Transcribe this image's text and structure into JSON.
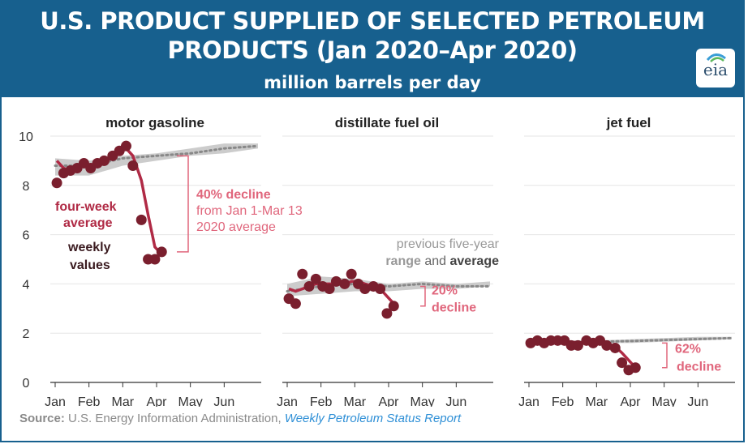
{
  "header": {
    "title_line1": "U.S. PRODUCT SUPPLIED OF SELECTED PETROLEUM",
    "title_line2": "PRODUCTS (Jan 2020–Apr 2020)",
    "subtitle": "million barrels per day",
    "logo_text": "eia"
  },
  "source": {
    "label": "Source:",
    "agency": " U.S. Energy Information Administration, ",
    "report": "Weekly Petroleum Status Report"
  },
  "colors": {
    "header_bg": "#17608e",
    "weekly": "#7a1f2e",
    "average_4wk": "#b02a45",
    "decline_text": "#e0667c",
    "range_band": "#cccccc",
    "five_year_avg": "#888888"
  },
  "chart_data": {
    "type": "line",
    "ylim": [
      0,
      10
    ],
    "yticks": [
      "0",
      "2",
      "4",
      "6",
      "8",
      "10"
    ],
    "xlim": [
      0,
      6
    ],
    "xticks": [
      "Jan",
      "Feb",
      "Mar",
      "Apr",
      "May",
      "Jun"
    ],
    "grid": true,
    "panels": [
      {
        "title": "motor gasoline",
        "weekly": [
          [
            0.05,
            8.1
          ],
          [
            0.25,
            8.5
          ],
          [
            0.45,
            8.6
          ],
          [
            0.65,
            8.7
          ],
          [
            0.85,
            8.9
          ],
          [
            1.05,
            8.7
          ],
          [
            1.25,
            8.9
          ],
          [
            1.45,
            9.0
          ],
          [
            1.7,
            9.2
          ],
          [
            1.9,
            9.4
          ],
          [
            2.1,
            9.6
          ],
          [
            2.3,
            8.8
          ],
          [
            2.55,
            6.6
          ],
          [
            2.75,
            5.0
          ],
          [
            2.95,
            5.0
          ],
          [
            3.15,
            5.3
          ]
        ],
        "avg_4wk": [
          [
            0.05,
            9.0
          ],
          [
            0.25,
            8.7
          ],
          [
            0.45,
            8.6
          ],
          [
            0.65,
            8.7
          ],
          [
            0.85,
            8.8
          ],
          [
            1.05,
            8.8
          ],
          [
            1.25,
            8.9
          ],
          [
            1.45,
            9.0
          ],
          [
            1.7,
            9.1
          ],
          [
            1.9,
            9.3
          ],
          [
            2.1,
            9.5
          ],
          [
            2.3,
            9.2
          ],
          [
            2.55,
            8.2
          ],
          [
            2.75,
            6.8
          ],
          [
            2.95,
            5.5
          ],
          [
            3.15,
            5.2
          ]
        ],
        "range_upper": [
          [
            0,
            9.1
          ],
          [
            1,
            9.0
          ],
          [
            2,
            9.2
          ],
          [
            3,
            9.3
          ],
          [
            4,
            9.5
          ],
          [
            5,
            9.7
          ],
          [
            6,
            9.7
          ]
        ],
        "range_lower": [
          [
            0,
            8.4
          ],
          [
            1,
            8.4
          ],
          [
            2,
            8.8
          ],
          [
            3,
            9.0
          ],
          [
            4,
            9.2
          ],
          [
            5,
            9.3
          ],
          [
            6,
            9.5
          ]
        ],
        "five_year_avg": [
          [
            0,
            8.8
          ],
          [
            1,
            8.8
          ],
          [
            2,
            9.1
          ],
          [
            3,
            9.2
          ],
          [
            4,
            9.3
          ],
          [
            5,
            9.5
          ],
          [
            6,
            9.6
          ]
        ],
        "annotation": {
          "main": "40% decline",
          "sub1": "from Jan 1-Mar 13",
          "sub2": "2020 average",
          "from": 9.2,
          "to": 5.3
        }
      },
      {
        "title": "distillate fuel oil",
        "weekly": [
          [
            0.05,
            3.4
          ],
          [
            0.25,
            3.2
          ],
          [
            0.45,
            4.4
          ],
          [
            0.65,
            3.9
          ],
          [
            0.85,
            4.2
          ],
          [
            1.05,
            3.9
          ],
          [
            1.25,
            3.8
          ],
          [
            1.45,
            4.1
          ],
          [
            1.7,
            4.0
          ],
          [
            1.9,
            4.4
          ],
          [
            2.1,
            4.0
          ],
          [
            2.3,
            3.8
          ],
          [
            2.55,
            3.9
          ],
          [
            2.75,
            3.8
          ],
          [
            2.95,
            2.8
          ],
          [
            3.15,
            3.1
          ]
        ],
        "avg_4wk": [
          [
            0.05,
            3.8
          ],
          [
            0.25,
            3.7
          ],
          [
            0.45,
            3.8
          ],
          [
            0.65,
            3.9
          ],
          [
            0.85,
            4.0
          ],
          [
            1.05,
            4.0
          ],
          [
            1.25,
            4.0
          ],
          [
            1.45,
            4.0
          ],
          [
            1.7,
            4.0
          ],
          [
            1.9,
            4.1
          ],
          [
            2.1,
            4.1
          ],
          [
            2.3,
            4.0
          ],
          [
            2.55,
            3.9
          ],
          [
            2.75,
            3.8
          ],
          [
            2.95,
            3.5
          ],
          [
            3.15,
            3.2
          ]
        ],
        "range_upper": [
          [
            0,
            4.0
          ],
          [
            1,
            4.3
          ],
          [
            2,
            4.2
          ],
          [
            3,
            4.0
          ],
          [
            4,
            4.1
          ],
          [
            5,
            4.0
          ],
          [
            6,
            4.1
          ]
        ],
        "range_lower": [
          [
            0,
            3.5
          ],
          [
            1,
            3.6
          ],
          [
            2,
            3.7
          ],
          [
            3,
            3.7
          ],
          [
            4,
            3.8
          ],
          [
            5,
            3.8
          ],
          [
            6,
            3.9
          ]
        ],
        "five_year_avg": [
          [
            0,
            3.7
          ],
          [
            1,
            3.9
          ],
          [
            2,
            4.0
          ],
          [
            3,
            3.9
          ],
          [
            4,
            4.0
          ],
          [
            5,
            3.9
          ],
          [
            6,
            3.9
          ]
        ],
        "annotation": {
          "main": "20%",
          "sub1": "decline",
          "from": 3.9,
          "to": 3.1
        },
        "legend_note": {
          "line1": "previous five-year",
          "range_word": "range",
          "and_word": " and ",
          "avg_word": "average"
        }
      },
      {
        "title": "jet fuel",
        "weekly": [
          [
            0.05,
            1.6
          ],
          [
            0.25,
            1.7
          ],
          [
            0.45,
            1.6
          ],
          [
            0.65,
            1.7
          ],
          [
            0.85,
            1.7
          ],
          [
            1.05,
            1.7
          ],
          [
            1.25,
            1.5
          ],
          [
            1.45,
            1.5
          ],
          [
            1.7,
            1.7
          ],
          [
            1.9,
            1.6
          ],
          [
            2.1,
            1.7
          ],
          [
            2.3,
            1.5
          ],
          [
            2.55,
            1.4
          ],
          [
            2.75,
            0.8
          ],
          [
            2.95,
            0.5
          ],
          [
            3.15,
            0.6
          ]
        ],
        "avg_4wk": [
          [
            0.05,
            1.65
          ],
          [
            0.25,
            1.66
          ],
          [
            0.45,
            1.66
          ],
          [
            0.65,
            1.67
          ],
          [
            0.85,
            1.67
          ],
          [
            1.05,
            1.66
          ],
          [
            1.25,
            1.64
          ],
          [
            1.45,
            1.62
          ],
          [
            1.7,
            1.62
          ],
          [
            1.9,
            1.62
          ],
          [
            2.1,
            1.62
          ],
          [
            2.3,
            1.58
          ],
          [
            2.55,
            1.45
          ],
          [
            2.75,
            1.2
          ],
          [
            2.95,
            0.9
          ],
          [
            3.15,
            0.6
          ]
        ],
        "range_upper": [
          [
            0,
            1.65
          ],
          [
            1,
            1.7
          ],
          [
            2,
            1.7
          ],
          [
            3,
            1.75
          ],
          [
            4,
            1.8
          ],
          [
            5,
            1.85
          ],
          [
            6,
            1.85
          ]
        ],
        "range_lower": [
          [
            0,
            1.55
          ],
          [
            1,
            1.55
          ],
          [
            2,
            1.6
          ],
          [
            3,
            1.6
          ],
          [
            4,
            1.65
          ],
          [
            5,
            1.7
          ],
          [
            6,
            1.75
          ]
        ],
        "five_year_avg": [
          [
            0,
            1.6
          ],
          [
            1,
            1.62
          ],
          [
            2,
            1.65
          ],
          [
            3,
            1.68
          ],
          [
            4,
            1.72
          ],
          [
            5,
            1.76
          ],
          [
            6,
            1.8
          ]
        ],
        "annotation": {
          "main": "62%",
          "sub1": "decline",
          "from": 1.6,
          "to": 0.6
        }
      }
    ],
    "series_labels": {
      "avg_line1": "four-week",
      "avg_line2": "average",
      "weekly_line1": "weekly",
      "weekly_line2": "values"
    }
  }
}
